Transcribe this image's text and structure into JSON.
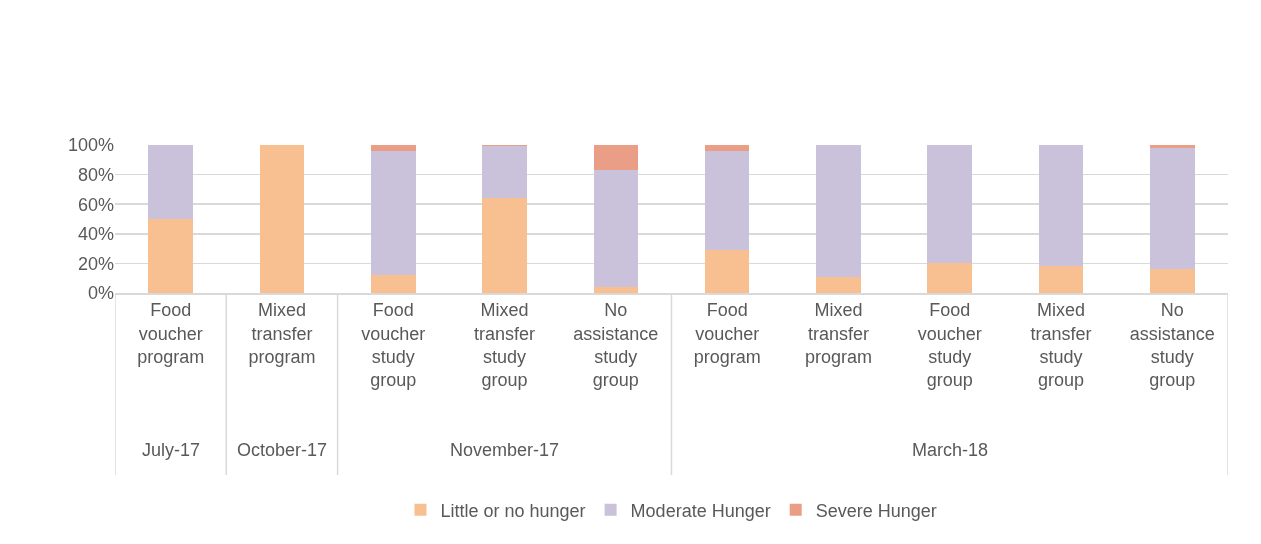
{
  "chart_data": {
    "type": "bar",
    "stacked": true,
    "categories": [
      "Food voucher program",
      "Mixed transfer program",
      "Food voucher study group",
      "Mixed transfer study group",
      "No assistance study group",
      "Food voucher program",
      "Mixed transfer program",
      "Food voucher study group",
      "Mixed transfer study group",
      "No assistance study group"
    ],
    "annotations": [
      "July-17",
      "October-17",
      "November-17",
      "March-18"
    ],
    "series": [
      {
        "name": "Little or no hunger",
        "color": "#f8c090",
        "values": [
          50,
          100,
          12,
          64,
          4,
          29,
          11,
          20,
          18,
          16
        ]
      },
      {
        "name": "Moderate Hunger",
        "color": "#cac1da",
        "values": [
          50,
          0,
          84,
          35,
          79,
          67,
          89,
          80,
          82,
          82
        ]
      },
      {
        "name": "Severe Hunger",
        "color": "#eb9e86",
        "values": [
          0,
          0,
          4,
          1,
          17,
          4,
          0,
          0,
          0,
          2
        ]
      }
    ],
    "ylim": [
      0,
      100
    ],
    "yticks": [
      {
        "value": 0,
        "label": "0%"
      },
      {
        "value": 20,
        "label": "20%"
      },
      {
        "value": 40,
        "label": "40%"
      },
      {
        "value": 60,
        "label": "60%"
      },
      {
        "value": 80,
        "label": "80%"
      },
      {
        "value": 100,
        "label": "100%"
      }
    ],
    "grid": "y",
    "legend": "bottom"
  }
}
